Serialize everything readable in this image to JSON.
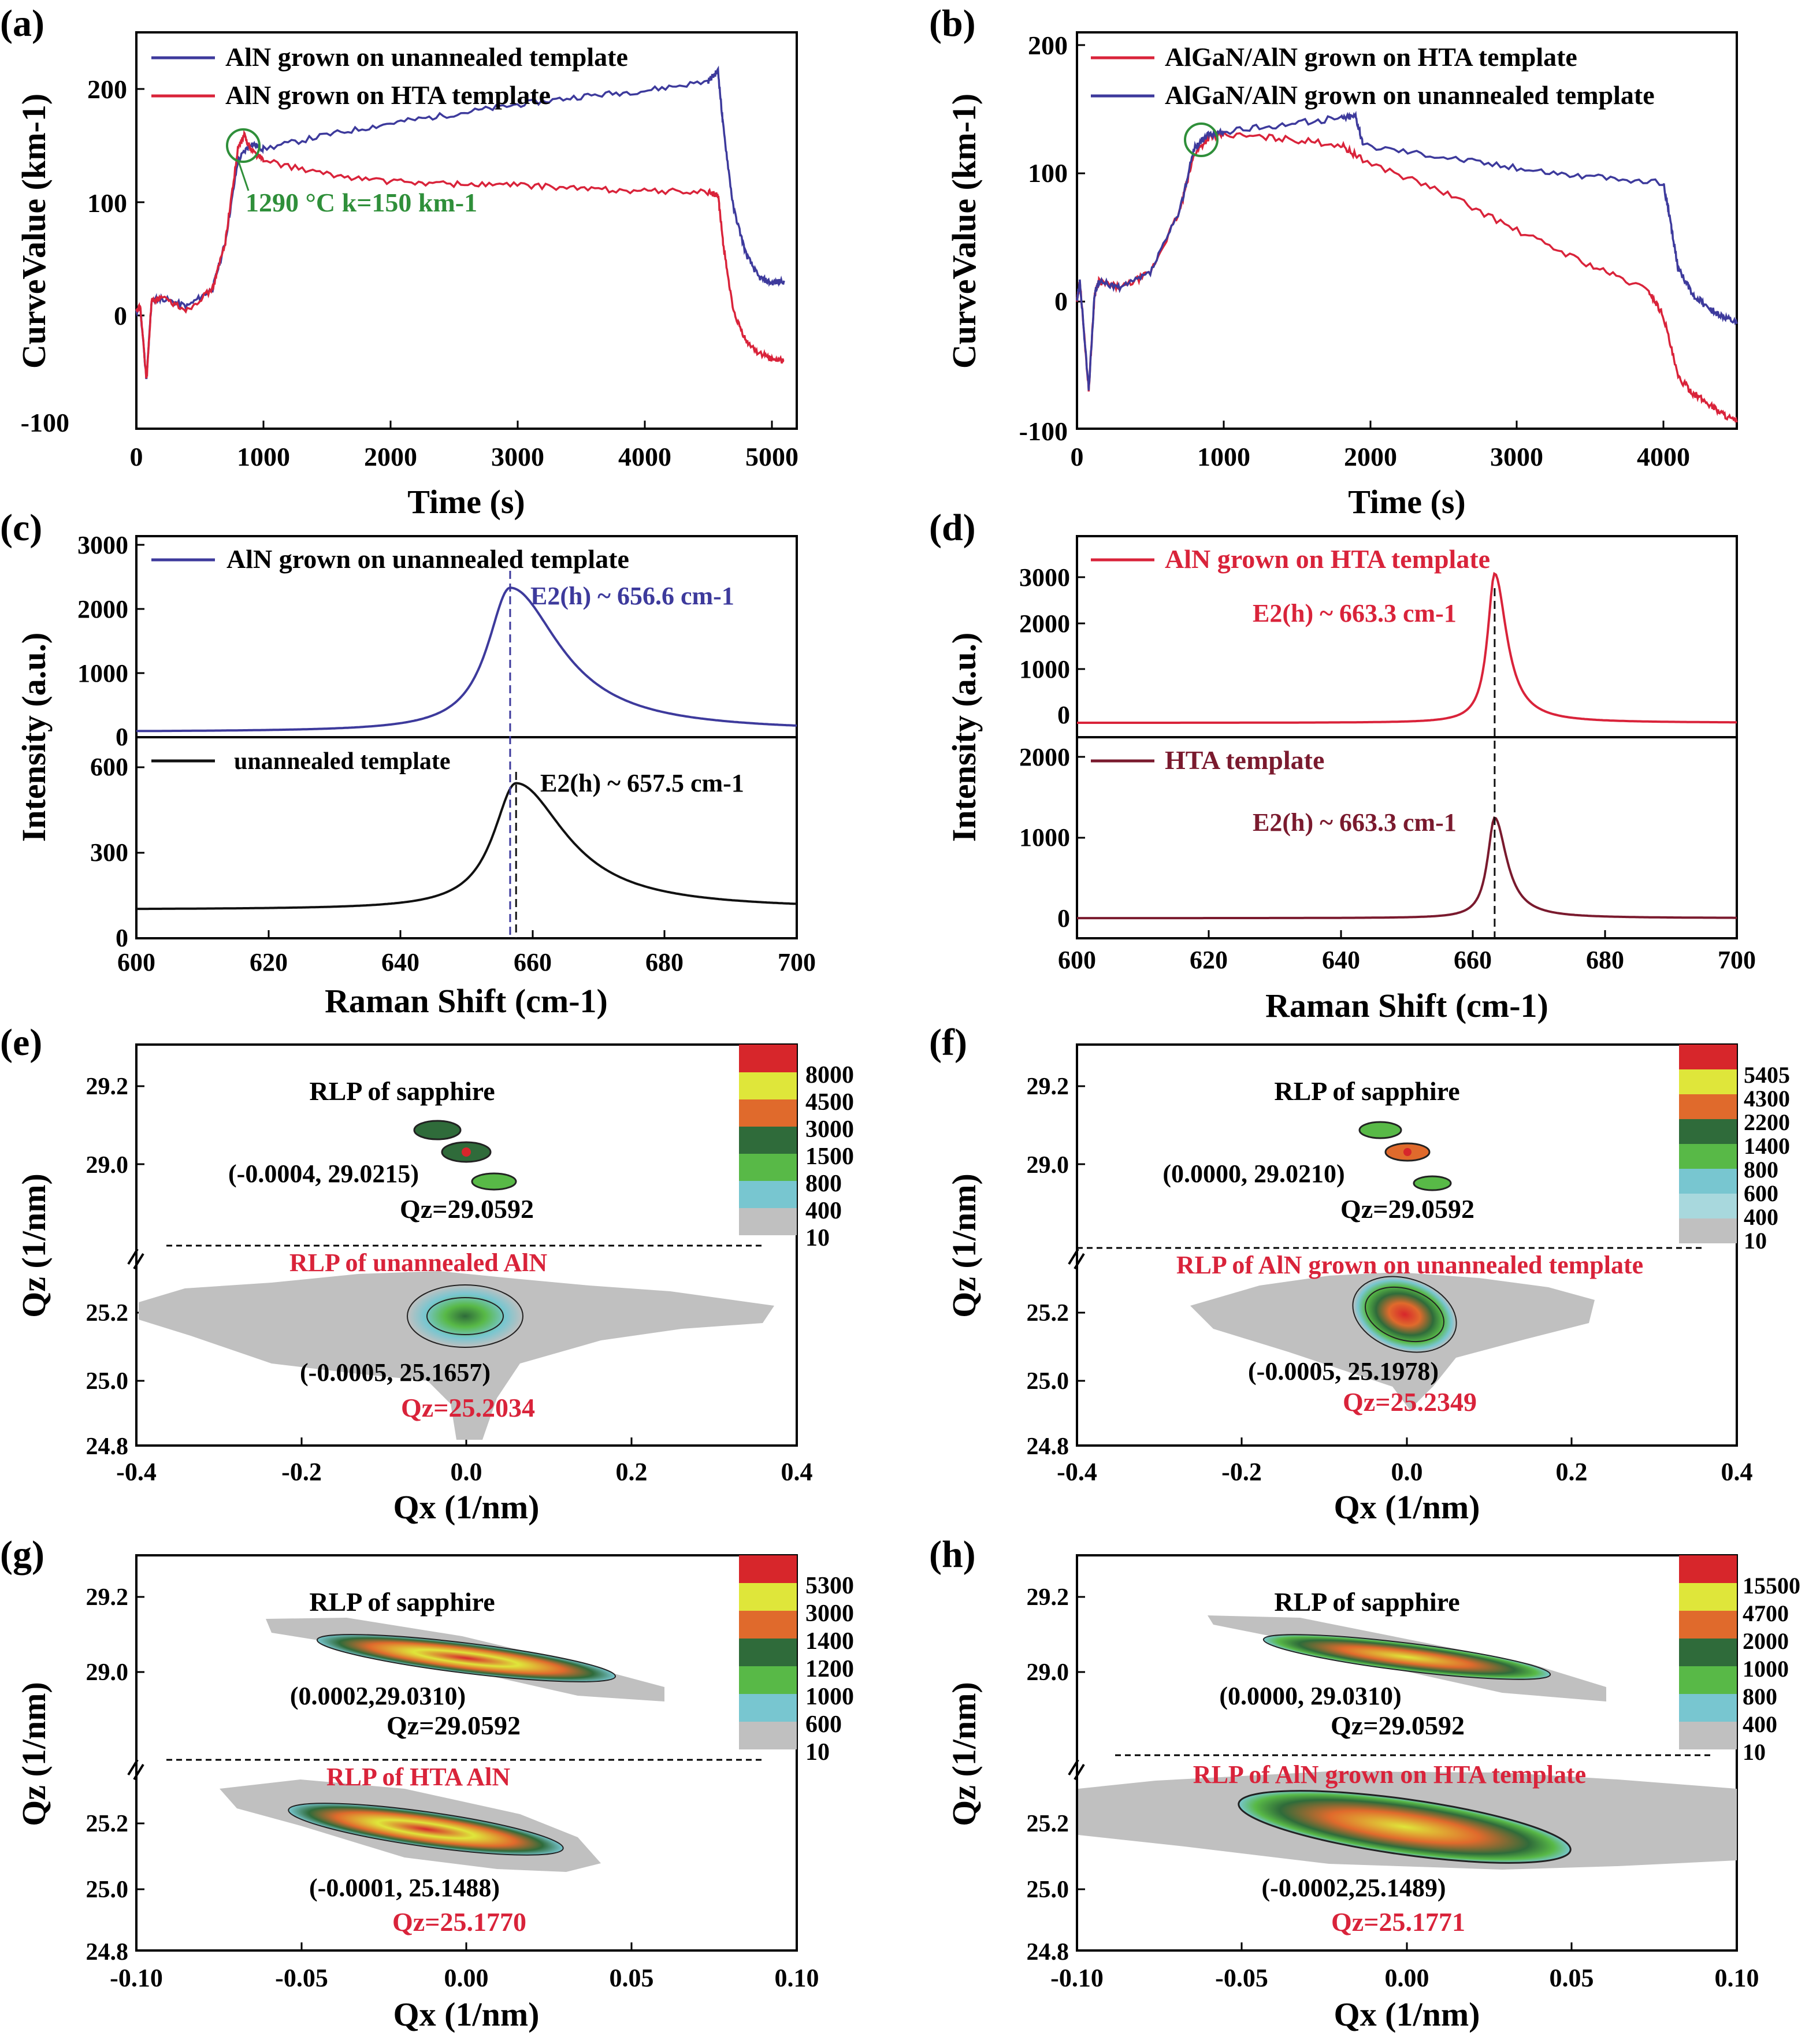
{
  "panels": [
    {
      "id": "a",
      "label": "(a)",
      "type": "line",
      "xlabel": "Time (s)",
      "ylabel": "CurveValue (km-1)",
      "xlim": [
        0,
        5100
      ],
      "ylim": [
        -100,
        240
      ],
      "xticks": [
        0,
        1000,
        2000,
        3000,
        4000,
        5000
      ],
      "yticks": [
        -100,
        0,
        100,
        200
      ],
      "legend": [
        {
          "name": "AlN grown on unannealed template",
          "color": "#3d3a9c"
        },
        {
          "name": "AlN grown on HTA template",
          "color": "#d9233a"
        }
      ],
      "annotation": "1290 °C k=150 km-1",
      "annotation_color": "#2f8f3a"
    },
    {
      "id": "b",
      "label": "(b)",
      "type": "line",
      "xlabel": "Time (s)",
      "ylabel": "CurveValue (km-1)",
      "xlim": [
        0,
        4500
      ],
      "ylim": [
        -100,
        210
      ],
      "xticks": [
        0,
        1000,
        2000,
        3000,
        4000
      ],
      "yticks": [
        -100,
        0,
        100,
        200
      ],
      "legend": [
        {
          "name": "AlGaN/AlN grown on HTA template",
          "color": "#d9233a"
        },
        {
          "name": "AlGaN/AlN grown on unannealed template",
          "color": "#3d3a9c"
        }
      ]
    },
    {
      "id": "c",
      "label": "(c)",
      "type": "line",
      "xlabel": "Raman Shift (cm-1)",
      "ylabel": "Intensity (a.u.)",
      "xlim": [
        600,
        700
      ],
      "xticks": [
        600,
        620,
        640,
        660,
        680,
        700
      ],
      "top": {
        "ylim": [
          0,
          3000
        ],
        "yticks": [
          0,
          1000,
          2000,
          3000
        ],
        "legend": "AlN grown on unannealed template",
        "color": "#3d3a9c",
        "peak_label": "E2(h) ~ 656.6 cm-1"
      },
      "bottom": {
        "ylim": [
          0,
          700
        ],
        "yticks": [
          0,
          300,
          600
        ],
        "legend": "unannealed template",
        "color": "#111111",
        "peak_label": "E2(h) ~ 657.5 cm-1"
      }
    },
    {
      "id": "d",
      "label": "(d)",
      "type": "line",
      "xlabel": "Raman Shift (cm-1)",
      "ylabel": "Intensity (a.u.)",
      "xlim": [
        600,
        700
      ],
      "xticks": [
        600,
        620,
        640,
        660,
        680,
        700
      ],
      "top": {
        "ylim": [
          -200,
          3300
        ],
        "yticks": [
          0,
          1000,
          2000,
          3000
        ],
        "legend": "AlN grown on HTA template",
        "color": "#d9233a",
        "peak_label": "E2(h) ~ 663.3 cm-1"
      },
      "bottom": {
        "ylim": [
          -200,
          2300
        ],
        "yticks": [
          0,
          1000,
          2000
        ],
        "legend": "HTA template",
        "color": "#7a1a2e",
        "peak_label": "E2(h) ~ 663.3 cm-1"
      }
    },
    {
      "id": "e",
      "label": "(e)",
      "type": "heatmap",
      "xlabel": "Qx (1/nm)",
      "ylabel": "Qz (1/nm)",
      "xlim": [
        -0.4,
        0.4
      ],
      "xticks": [
        "-0.4",
        "-0.2",
        "0.0",
        "0.2",
        "0.4"
      ],
      "yticks_top": [
        "29.2",
        "29.0"
      ],
      "yticks_bottom": [
        "25.2",
        "25.0",
        "24.8"
      ],
      "colorbar": [
        "8000",
        "4500",
        "3000",
        "1500",
        "800",
        "400",
        "10"
      ],
      "title_top": "RLP of sapphire",
      "coord_top": "(-0.0004, 29.0215)",
      "qz_top": "Qz=29.0592",
      "title_bottom": "RLP of unannealed AlN",
      "coord_bottom": "(-0.0005, 25.1657)",
      "qz_bottom": "Qz=25.2034"
    },
    {
      "id": "f",
      "label": "(f)",
      "type": "heatmap",
      "xlabel": "Qx (1/nm)",
      "ylabel": "Qz (1/nm)",
      "xlim": [
        -0.4,
        0.4
      ],
      "xticks": [
        "-0.4",
        "-0.2",
        "0.0",
        "0.2",
        "0.4"
      ],
      "yticks_top": [
        "29.2",
        "29.0"
      ],
      "yticks_bottom": [
        "25.2",
        "25.0",
        "24.8"
      ],
      "colorbar": [
        "5405",
        "4300",
        "2200",
        "1400",
        "800",
        "600",
        "400",
        "10"
      ],
      "title_top": "RLP of sapphire",
      "coord_top": "(0.0000, 29.0210)",
      "qz_top": "Qz=29.0592",
      "title_bottom": "RLP of AlN grown on unannealed template",
      "coord_bottom": "(-0.0005, 25.1978)",
      "qz_bottom": "Qz=25.2349"
    },
    {
      "id": "g",
      "label": "(g)",
      "type": "heatmap",
      "xlabel": "Qx (1/nm)",
      "ylabel": "Qz (1/nm)",
      "xlim": [
        -0.1,
        0.1
      ],
      "xticks": [
        "-0.10",
        "-0.05",
        "0.00",
        "0.05",
        "0.10"
      ],
      "yticks_top": [
        "29.2",
        "29.0"
      ],
      "yticks_bottom": [
        "25.2",
        "25.0",
        "24.8"
      ],
      "colorbar": [
        "5300",
        "3000",
        "1400",
        "1200",
        "1000",
        "600",
        "10"
      ],
      "title_top": "RLP of sapphire",
      "coord_top": "(0.0002,29.0310)",
      "qz_top": "Qz=29.0592",
      "title_bottom": "RLP of HTA AlN",
      "coord_bottom": "(-0.0001, 25.1488)",
      "qz_bottom": "Qz=25.1770"
    },
    {
      "id": "h",
      "label": "(h)",
      "type": "heatmap",
      "xlabel": "Qx (1/nm)",
      "ylabel": "Qz (1/nm)",
      "xlim": [
        -0.1,
        0.1
      ],
      "xticks": [
        "-0.10",
        "-0.05",
        "0.00",
        "0.05",
        "0.10"
      ],
      "yticks_top": [
        "29.2",
        "29.0"
      ],
      "yticks_bottom": [
        "25.2",
        "25.0",
        "24.8"
      ],
      "colorbar": [
        "15500",
        "4700",
        "2000",
        "1000",
        "800",
        "400",
        "10"
      ],
      "title_top": "RLP of sapphire",
      "coord_top": "(0.0000, 29.0310)",
      "qz_top": "Qz=29.0592",
      "title_bottom": "RLP of AlN grown on HTA template",
      "coord_bottom": "(-0.0002,25.1489)",
      "qz_bottom": "Qz=25.1771"
    }
  ],
  "chart_data": [
    {
      "panel": "a",
      "type": "line",
      "series": [
        {
          "name": "AlN grown on unannealed template",
          "color": "#3d3a9c",
          "x": [
            0,
            30,
            80,
            120,
            200,
            400,
            600,
            700,
            800,
            900,
            1000,
            1500,
            2000,
            2500,
            3000,
            3500,
            4000,
            4500,
            4580,
            4620,
            4700,
            4800,
            4900,
            5000,
            5100
          ],
          "y": [
            0,
            5,
            -58,
            10,
            12,
            5,
            20,
            60,
            130,
            145,
            140,
            152,
            162,
            170,
            178,
            185,
            190,
            198,
            207,
            160,
            90,
            50,
            30,
            25,
            27
          ]
        },
        {
          "name": "AlN grown on HTA template",
          "color": "#d9233a",
          "x": [
            0,
            30,
            80,
            120,
            200,
            400,
            600,
            700,
            800,
            850,
            900,
            1000,
            1500,
            2000,
            2500,
            3000,
            3500,
            4000,
            4500,
            4580,
            4620,
            4700,
            4800,
            4900,
            5000,
            5100
          ],
          "y": [
            0,
            5,
            -58,
            10,
            12,
            2,
            20,
            60,
            140,
            152,
            140,
            130,
            118,
            112,
            110,
            109,
            106,
            104,
            103,
            100,
            60,
            0,
            -25,
            -35,
            -40,
            -42
          ]
        }
      ]
    },
    {
      "panel": "b",
      "type": "line",
      "series": [
        {
          "name": "AlGaN/AlN grown on HTA template",
          "color": "#d9233a",
          "x": [
            0,
            20,
            80,
            120,
            150,
            300,
            500,
            700,
            800,
            900,
            1000,
            1400,
            1800,
            1950,
            2500,
            3000,
            3500,
            3900,
            4000,
            4100,
            4200,
            4300,
            4400,
            4500
          ],
          "y": [
            0,
            15,
            -70,
            5,
            15,
            10,
            22,
            70,
            115,
            128,
            130,
            127,
            122,
            110,
            85,
            55,
            28,
            8,
            -12,
            -60,
            -72,
            -80,
            -88,
            -95
          ]
        },
        {
          "name": "AlGaN/AlN grown on unannealed template",
          "color": "#3d3a9c",
          "x": [
            0,
            20,
            80,
            120,
            150,
            300,
            500,
            700,
            800,
            900,
            1000,
            1400,
            1800,
            1900,
            1950,
            2500,
            3000,
            3500,
            4000,
            4050,
            4100,
            4200,
            4300,
            4400,
            4500
          ],
          "y": [
            0,
            15,
            -70,
            5,
            15,
            10,
            22,
            70,
            120,
            130,
            132,
            138,
            143,
            145,
            122,
            113,
            104,
            97,
            92,
            60,
            25,
            5,
            -5,
            -12,
            -18
          ]
        }
      ]
    },
    {
      "panel": "c",
      "type": "line",
      "series": [
        {
          "name": "AlN grown on unannealed template",
          "color": "#3d3a9c",
          "peak_center": 656.6,
          "peak_height": 2150,
          "background": 80
        },
        {
          "name": "unannealed template",
          "color": "#111111",
          "peak_center": 657.5,
          "peak_height": 440,
          "background": 100
        }
      ],
      "dashed_lines": [
        656.6,
        657.5
      ]
    },
    {
      "panel": "d",
      "type": "line",
      "series": [
        {
          "name": "AlN grown on HTA template",
          "color": "#d9233a",
          "peak_center": 663.3,
          "peak_height": 2600,
          "background": 50
        },
        {
          "name": "HTA template",
          "color": "#7a1a2e",
          "peak_center": 663.3,
          "peak_height": 1250,
          "background": 50
        }
      ],
      "dashed_lines": [
        663.3
      ]
    }
  ],
  "colors": {
    "blue": "#3d3a9c",
    "red": "#d9233a",
    "green": "#2f8f3a",
    "rlp_label": "#d9233a",
    "colormap": [
      "#d7262b",
      "#dfe63a",
      "#e06a2c",
      "#2f6b3a",
      "#58b947",
      "#78c6d0",
      "#c0c0c0"
    ]
  }
}
